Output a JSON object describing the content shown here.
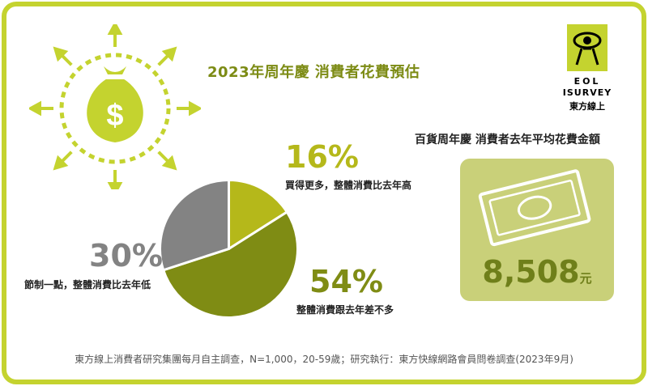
{
  "title": "2023年周年慶  消費者花費預估",
  "logo": {
    "line1": "EOL",
    "line2": "ISURVEY",
    "line3": "東方線上"
  },
  "right_panel": {
    "title": "百貨周年慶 消費者去年平均花費金額",
    "amount": "8,508",
    "unit": "元"
  },
  "footer": "東方線上消費者研究集團每月自主調查，N=1,000，20-59歲；研究執行：東方快線網路會員問卷調查(2023年9月)",
  "colors": {
    "border": "#c4d32f",
    "slice_more": "#b5b81a",
    "slice_same": "#7f8c14",
    "slice_less": "#838383"
  },
  "chart_data": {
    "type": "pie",
    "title": "2023年周年慶  消費者花費預估",
    "slices": [
      {
        "label": "買得更多，整體消費比去年高",
        "value": 16,
        "display": "16%",
        "color": "#b5b81a"
      },
      {
        "label": "整體消費跟去年差不多",
        "value": 54,
        "display": "54%",
        "color": "#7f8c14"
      },
      {
        "label": "節制一點，整體消費比去年低",
        "value": 30,
        "display": "30%",
        "color": "#838383"
      }
    ]
  }
}
